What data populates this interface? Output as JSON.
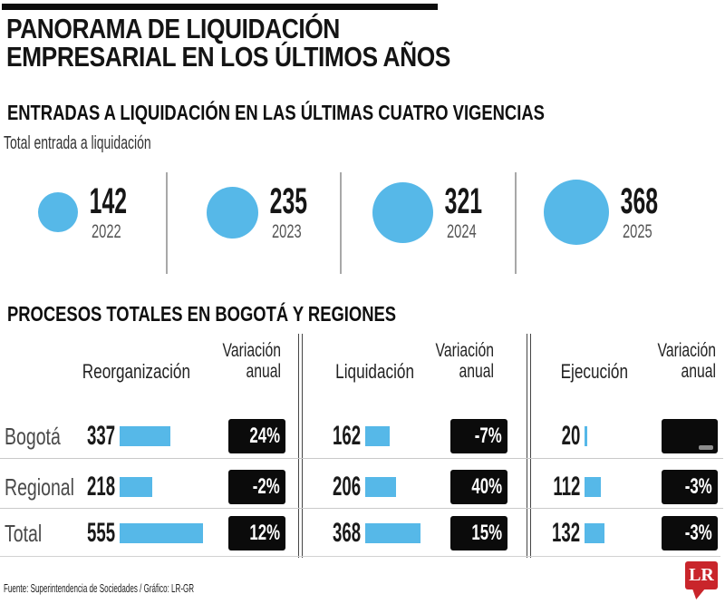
{
  "colors": {
    "blue": "#56B8E8",
    "badge_bg": "#0B0B0B",
    "logo_red": "#C9252B"
  },
  "title": {
    "line1": "PANORAMA DE LIQUIDACIÓN",
    "line2": "EMPRESARIAL EN LOS ÚLTIMOS AÑOS"
  },
  "section_entries": {
    "heading": "ENTRADAS A LIQUIDACIÓN EN LAS ÚLTIMAS CUATRO VIGENCIAS",
    "subtitle": "Total entrada a liquidación",
    "years": [
      {
        "year": "2022",
        "value": 142
      },
      {
        "year": "2023",
        "value": 235
      },
      {
        "year": "2024",
        "value": 321
      },
      {
        "year": "2025",
        "value": 368
      }
    ]
  },
  "section_processes": {
    "heading": "PROCESOS TOTALES EN BOGOTÁ Y REGIONES",
    "groups": [
      {
        "metric": "Reorganización",
        "variation_header": "Variación anual"
      },
      {
        "metric": "Liquidación",
        "variation_header": "Variación anual"
      },
      {
        "metric": "Ejecución",
        "variation_header": "Variación anual"
      }
    ],
    "rows": [
      {
        "label": "Bogotá",
        "cells": [
          {
            "value": 337,
            "variation": "24%"
          },
          {
            "value": 162,
            "variation": "-7%"
          },
          {
            "value": 20,
            "variation": ""
          }
        ]
      },
      {
        "label": "Regional",
        "cells": [
          {
            "value": 218,
            "variation": "-2%"
          },
          {
            "value": 206,
            "variation": "40%"
          },
          {
            "value": 112,
            "variation": "-3%"
          }
        ]
      },
      {
        "label": "Total",
        "cells": [
          {
            "value": 555,
            "variation": "12%"
          },
          {
            "value": 368,
            "variation": "15%"
          },
          {
            "value": 132,
            "variation": "-3%"
          }
        ]
      }
    ]
  },
  "footer": {
    "source": "Fuente: Superintendencia de Sociedades / Gráfico: LR-GR",
    "logo_text": "LR"
  },
  "chart_data": [
    {
      "type": "bubble",
      "title": "ENTRADAS A LIQUIDACIÓN EN LAS ÚLTIMAS CUATRO VIGENCIAS",
      "subtitle": "Total entrada a liquidación",
      "categories": [
        "2022",
        "2023",
        "2024",
        "2025"
      ],
      "values": [
        142,
        235,
        321,
        368
      ],
      "note": "circle area proportional to value, all circles colored sky blue"
    },
    {
      "type": "table",
      "title": "PROCESOS TOTALES EN BOGOTÁ Y REGIONES",
      "columns": [
        "Reorganización",
        "Variación anual",
        "Liquidación",
        "Variación anual",
        "Ejecución",
        "Variación anual"
      ],
      "row_labels": [
        "Bogotá",
        "Regional",
        "Total"
      ],
      "rows": [
        [
          337,
          "24%",
          162,
          "-7%",
          20,
          null
        ],
        [
          218,
          "-2%",
          206,
          "40%",
          112,
          "-3%"
        ],
        [
          555,
          "12%",
          368,
          "15%",
          132,
          "-3%"
        ]
      ],
      "note": "counts shown with blue bars proportional to value; variations shown as white text in black badges; Bogotá-Ejecución variation is blank (dash)"
    }
  ]
}
